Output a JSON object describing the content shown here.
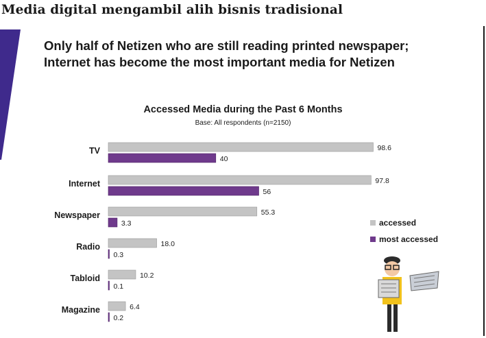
{
  "page_title": "Media digital mengambil alih bisnis tradisional",
  "headline": {
    "line1": "Only half of Netizen who are still reading printed newspaper;",
    "line2": "Internet has become the most important media for Netizen"
  },
  "colors": {
    "accessed": "#c4c4c4",
    "most_accessed": "#6f3a8c",
    "accent": "#3f2a8c"
  },
  "chart_data": {
    "type": "bar",
    "orientation": "horizontal",
    "title": "Accessed Media during the Past 6 Months",
    "subtitle": "Base: All respondents (n=2150)",
    "categories": [
      "TV",
      "Internet",
      "Newspaper",
      "Radio",
      "Tabloid",
      "Magazine"
    ],
    "series": [
      {
        "name": "accessed",
        "values": [
          98.6,
          97.8,
          55.3,
          18.0,
          10.2,
          6.4
        ],
        "labels": [
          "98.6",
          "97.8",
          "55.3",
          "18.0",
          "10.2",
          "6.4"
        ]
      },
      {
        "name": "most accessed",
        "values": [
          40,
          56,
          3.3,
          0.3,
          0.1,
          0.2
        ],
        "labels": [
          "40",
          "56",
          "3.3",
          "0.3",
          "0.1",
          "0.2"
        ]
      }
    ],
    "xlim": [
      0,
      100
    ],
    "legend": "right"
  }
}
